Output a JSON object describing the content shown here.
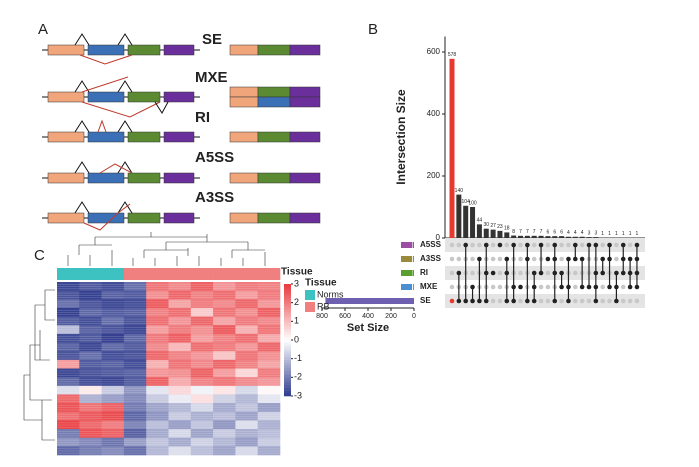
{
  "panel_a": {
    "label": "A",
    "events": [
      "SE",
      "MXE",
      "RI",
      "A5SS",
      "A3SS"
    ]
  },
  "chart_data": [
    {
      "type": "upset",
      "label": "B",
      "ylabel": "Intersection Size",
      "values": [
        578,
        140,
        104,
        100,
        44,
        30,
        27,
        23,
        18,
        8,
        7,
        7,
        7,
        7,
        6,
        6,
        6,
        4,
        4,
        4,
        3,
        3,
        1,
        1,
        1,
        1,
        1,
        1
      ],
      "colors": [
        "#e8392f",
        "#333333",
        "#333333",
        "#333333",
        "#333333",
        "#333333",
        "#333333",
        "#333333",
        "#333333",
        "#333333",
        "#333333",
        "#333333",
        "#333333",
        "#333333",
        "#333333",
        "#333333",
        "#333333",
        "#333333",
        "#333333",
        "#333333",
        "#333333",
        "#333333",
        "#333333",
        "#333333",
        "#333333",
        "#333333",
        "#333333",
        "#333333"
      ],
      "ylim": [
        0,
        650
      ],
      "yticks": [
        0,
        200,
        400,
        600
      ],
      "sets": [
        {
          "name": "A5SS",
          "color": "#9b4fa3"
        },
        {
          "name": "A3SS",
          "color": "#9a8a3c"
        },
        {
          "name": "RI",
          "color": "#5a9e2f"
        },
        {
          "name": "MXE",
          "color": "#4a8fd1"
        },
        {
          "name": "SE",
          "color": "#6e5fb0"
        }
      ],
      "set_sizes": [
        12,
        10,
        14,
        8,
        770
      ],
      "set_xlabel": "Set Size",
      "set_xlim": [
        800,
        0
      ],
      "set_xticks": [
        800,
        600,
        400,
        200,
        0
      ],
      "matrix": [
        [
          4
        ],
        [
          2,
          4
        ],
        [
          0,
          4
        ],
        [
          3,
          4
        ],
        [
          1,
          4
        ],
        [
          0,
          2,
          4
        ],
        [
          2
        ],
        [
          0
        ],
        [
          1,
          2,
          4
        ],
        [
          0,
          3,
          4
        ],
        [
          3
        ],
        [
          0,
          1,
          4
        ],
        [
          2,
          3,
          4
        ],
        [
          0,
          2
        ],
        [
          1
        ],
        [
          0,
          1,
          2,
          4
        ],
        [
          2,
          3
        ],
        [
          1,
          3,
          4
        ],
        [
          0,
          1
        ],
        [
          1,
          3
        ],
        [
          0,
          3
        ],
        [
          0,
          2,
          3,
          4
        ],
        [
          1,
          2
        ],
        [
          0,
          1,
          3
        ],
        [
          2,
          3,
          4
        ],
        [
          0,
          1,
          2
        ],
        [
          1,
          2,
          3
        ],
        [
          0,
          1,
          2,
          3
        ]
      ]
    },
    {
      "type": "heatmap",
      "label": "C",
      "annotation_label": "Tissue",
      "legend": {
        "title": "Tissue",
        "items": [
          {
            "name": "Norms",
            "color": "#3ec1c1"
          },
          {
            "name": "RB",
            "color": "#f08080"
          }
        ]
      },
      "column_groups": [
        0,
        0,
        0,
        1,
        1,
        1,
        1,
        1,
        1,
        1
      ],
      "clim": [
        -3,
        3
      ],
      "cticks": [
        3,
        2,
        1,
        0,
        -1,
        -2,
        -3
      ],
      "low_color": "#2e3a8c",
      "mid_color": "#ffffff",
      "high_color": "#e8393d",
      "values": [
        [
          -2.8,
          -2.5,
          -2.7,
          -2.2,
          2.1,
          1.8,
          2.4,
          1.6,
          2.0,
          1.9
        ],
        [
          -2.6,
          -2.9,
          -2.4,
          -2.5,
          1.7,
          2.3,
          1.9,
          2.2,
          1.5,
          2.0
        ],
        [
          -2.2,
          -2.6,
          -2.8,
          -2.7,
          2.5,
          1.4,
          2.0,
          1.8,
          2.3,
          1.6
        ],
        [
          -2.9,
          -2.3,
          -2.5,
          -2.4,
          1.9,
          2.2,
          0.8,
          2.1,
          1.7,
          2.4
        ],
        [
          -2.5,
          -2.7,
          -2.2,
          -2.6,
          2.2,
          1.6,
          2.3,
          1.4,
          2.0,
          1.8
        ],
        [
          -1.0,
          -2.4,
          -2.6,
          -2.8,
          1.5,
          2.0,
          1.7,
          2.5,
          1.2,
          2.1
        ],
        [
          -2.7,
          -2.5,
          -2.9,
          -2.3,
          2.0,
          2.4,
          1.5,
          1.9,
          2.2,
          1.3
        ],
        [
          -2.4,
          -2.8,
          -2.3,
          -2.5,
          1.8,
          1.1,
          2.2,
          2.0,
          1.6,
          2.3
        ],
        [
          -2.6,
          -2.2,
          -2.7,
          -2.6,
          2.3,
          1.9,
          1.6,
          0.9,
          2.1,
          1.7
        ],
        [
          1.5,
          -2.5,
          -2.4,
          -2.7,
          1.2,
          2.1,
          1.8,
          2.3,
          1.9,
          1.4
        ],
        [
          -2.8,
          -2.6,
          -2.5,
          -2.4,
          1.6,
          1.7,
          2.4,
          1.5,
          0.6,
          2.0
        ],
        [
          -2.3,
          -2.7,
          -2.8,
          -2.5,
          2.4,
          1.3,
          1.9,
          2.1,
          1.8,
          1.6
        ],
        [
          -0.5,
          0.3,
          -0.8,
          -1.6,
          -0.4,
          0.6,
          -0.2,
          0.4,
          -0.6,
          0.1
        ],
        [
          2.3,
          -1.2,
          -1.5,
          -1.8,
          -0.8,
          -0.3,
          0.5,
          -0.7,
          -1.1,
          -0.4
        ],
        [
          2.6,
          2.1,
          2.4,
          -2.0,
          -1.4,
          -1.1,
          -0.6,
          -1.3,
          -0.9,
          -1.5
        ],
        [
          2.2,
          2.5,
          2.7,
          -2.3,
          -1.6,
          -0.8,
          -1.2,
          -1.0,
          -1.4,
          -0.7
        ],
        [
          2.8,
          2.3,
          2.0,
          -1.9,
          -1.0,
          -1.5,
          -0.9,
          -1.6,
          -0.5,
          -1.2
        ],
        [
          -2.0,
          2.6,
          2.4,
          -2.4,
          -1.3,
          -0.6,
          -1.4,
          -0.8,
          -1.2,
          -1.0
        ],
        [
          -1.6,
          -1.8,
          -2.1,
          -1.5,
          -0.9,
          -1.3,
          -0.7,
          -1.1,
          -1.5,
          -0.8
        ],
        [
          -2.3,
          -2.0,
          -1.8,
          -2.2,
          -1.1,
          -0.5,
          -1.0,
          -1.4,
          -0.6,
          -1.3
        ]
      ]
    }
  ]
}
